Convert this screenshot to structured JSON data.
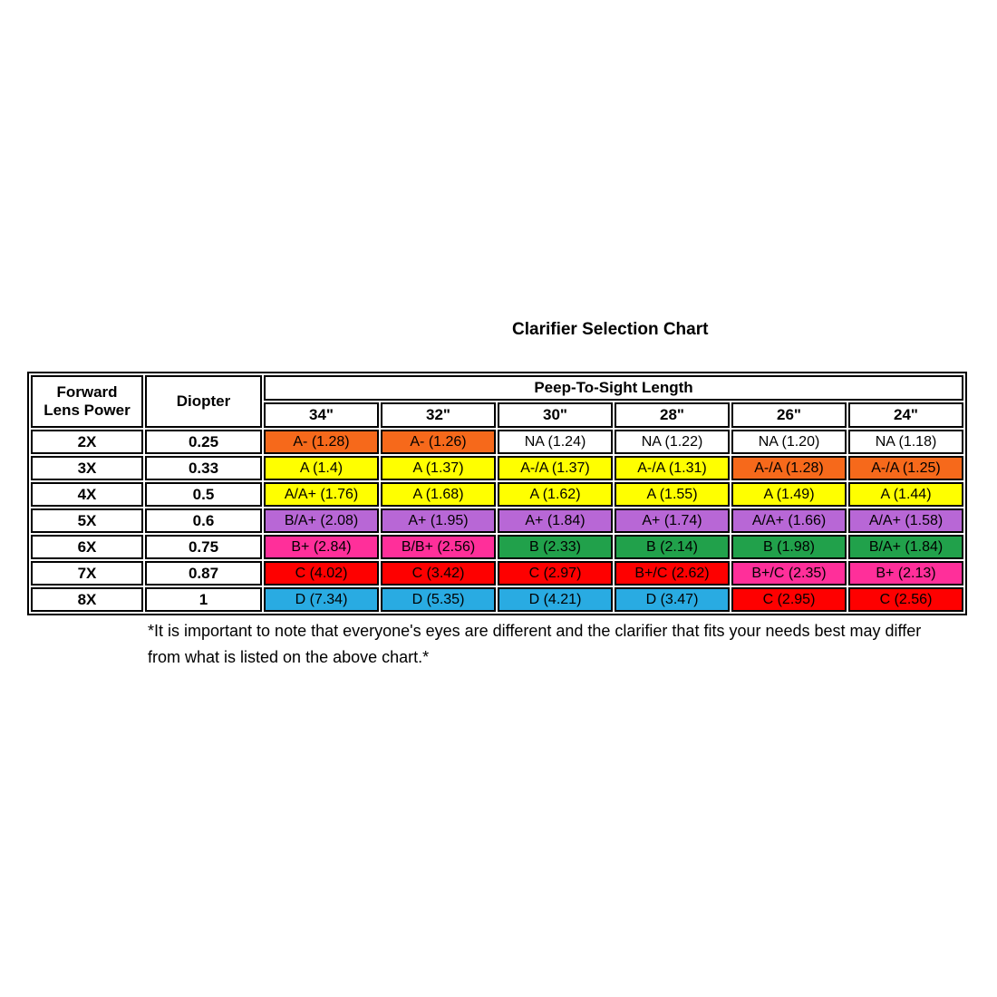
{
  "title": "Clarifier Selection Chart",
  "colors": {
    "orange": "#F6691B",
    "yellow": "#FFFF00",
    "purple": "#B867D6",
    "pink": "#FF2F9A",
    "green": "#21A14B",
    "red": "#FE0000",
    "blue": "#29ABE2",
    "white": "#FFFFFF"
  },
  "chart_data": {
    "type": "table",
    "title": "Clarifier Selection Chart",
    "column_group_label": "Peep-To-Sight Length",
    "row_header": {
      "line1": "Forward",
      "line2": "Lens Power"
    },
    "diopter_label": "Diopter",
    "length_columns": [
      "34\"",
      "32\"",
      "30\"",
      "28\"",
      "26\"",
      "24\""
    ],
    "rows": [
      {
        "power": "2X",
        "diopter": "0.25",
        "cells": [
          {
            "label": "A- (1.28)",
            "color": "orange"
          },
          {
            "label": "A- (1.26)",
            "color": "orange"
          },
          {
            "label": "NA (1.24)",
            "color": "white"
          },
          {
            "label": "NA (1.22)",
            "color": "white"
          },
          {
            "label": "NA (1.20)",
            "color": "white"
          },
          {
            "label": "NA (1.18)",
            "color": "white"
          }
        ]
      },
      {
        "power": "3X",
        "diopter": "0.33",
        "cells": [
          {
            "label": "A (1.4)",
            "color": "yellow"
          },
          {
            "label": "A (1.37)",
            "color": "yellow"
          },
          {
            "label": "A-/A (1.37)",
            "color": "yellow"
          },
          {
            "label": "A-/A (1.31)",
            "color": "yellow"
          },
          {
            "label": "A-/A (1.28)",
            "color": "orange"
          },
          {
            "label": "A-/A (1.25)",
            "color": "orange"
          }
        ]
      },
      {
        "power": "4X",
        "diopter": "0.5",
        "cells": [
          {
            "label": "A/A+ (1.76)",
            "color": "yellow"
          },
          {
            "label": "A (1.68)",
            "color": "yellow"
          },
          {
            "label": "A (1.62)",
            "color": "yellow"
          },
          {
            "label": "A (1.55)",
            "color": "yellow"
          },
          {
            "label": "A (1.49)",
            "color": "yellow"
          },
          {
            "label": "A (1.44)",
            "color": "yellow"
          }
        ]
      },
      {
        "power": "5X",
        "diopter": "0.6",
        "cells": [
          {
            "label": "B/A+ (2.08)",
            "color": "purple"
          },
          {
            "label": "A+ (1.95)",
            "color": "purple"
          },
          {
            "label": "A+ (1.84)",
            "color": "purple"
          },
          {
            "label": "A+ (1.74)",
            "color": "purple"
          },
          {
            "label": "A/A+ (1.66)",
            "color": "purple"
          },
          {
            "label": "A/A+ (1.58)",
            "color": "purple"
          }
        ]
      },
      {
        "power": "6X",
        "diopter": "0.75",
        "cells": [
          {
            "label": "B+ (2.84)",
            "color": "pink"
          },
          {
            "label": "B/B+ (2.56)",
            "color": "pink"
          },
          {
            "label": "B (2.33)",
            "color": "green"
          },
          {
            "label": "B (2.14)",
            "color": "green"
          },
          {
            "label": "B (1.98)",
            "color": "green"
          },
          {
            "label": "B/A+ (1.84)",
            "color": "green"
          }
        ]
      },
      {
        "power": "7X",
        "diopter": "0.87",
        "cells": [
          {
            "label": "C (4.02)",
            "color": "red"
          },
          {
            "label": "C (3.42)",
            "color": "red"
          },
          {
            "label": "C (2.97)",
            "color": "red"
          },
          {
            "label": "B+/C (2.62)",
            "color": "red"
          },
          {
            "label": "B+/C (2.35)",
            "color": "pink"
          },
          {
            "label": "B+ (2.13)",
            "color": "pink"
          }
        ]
      },
      {
        "power": "8X",
        "diopter": "1",
        "cells": [
          {
            "label": "D (7.34)",
            "color": "blue"
          },
          {
            "label": "D (5.35)",
            "color": "blue"
          },
          {
            "label": "D (4.21)",
            "color": "blue"
          },
          {
            "label": "D (3.47)",
            "color": "blue"
          },
          {
            "label": "C (2.95)",
            "color": "red"
          },
          {
            "label": "C (2.56)",
            "color": "red"
          }
        ]
      }
    ]
  },
  "footnote": "*It is important to note that everyone's eyes are different and the clarifier that fits your needs best may differ from what is listed on the above chart.*"
}
